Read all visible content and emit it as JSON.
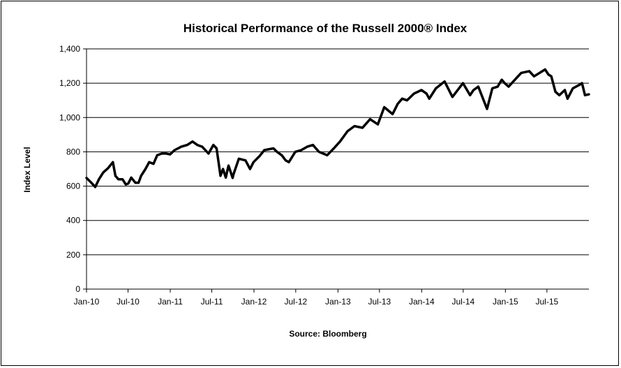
{
  "chart_data": {
    "type": "line",
    "title": "Historical Performance of the Russell 2000® Index",
    "xlabel": "",
    "ylabel": "Index Level",
    "source": "Source: Bloomberg",
    "ylim": [
      0,
      1400
    ],
    "y_ticks": [
      0,
      200,
      400,
      600,
      800,
      1000,
      1200,
      1400
    ],
    "y_tick_labels": [
      "0",
      "200",
      "400",
      "600",
      "800",
      "1,000",
      "1,200",
      "1,400"
    ],
    "xlim": [
      "2010-01-01",
      "2015-12-31"
    ],
    "x_ticks": [
      "2010-01-01",
      "2010-07-01",
      "2011-01-01",
      "2011-07-01",
      "2012-01-01",
      "2012-07-01",
      "2013-01-01",
      "2013-07-01",
      "2014-01-01",
      "2014-07-01",
      "2015-01-01",
      "2015-07-01"
    ],
    "x_tick_labels": [
      "Jan-10",
      "Jul-10",
      "Jan-11",
      "Jul-11",
      "Jan-12",
      "Jul-12",
      "Jan-13",
      "Jul-13",
      "Jan-14",
      "Jul-14",
      "Jan-15",
      "Jul-15"
    ],
    "grid": "horizontal",
    "legend": "none",
    "line_color": "#000000",
    "series": [
      {
        "x": [
          "2010-01-01",
          "2010-01-22",
          "2010-02-08",
          "2010-02-24",
          "2010-03-15",
          "2010-04-05",
          "2010-04-26",
          "2010-05-07",
          "2010-05-20",
          "2010-06-07",
          "2010-06-21",
          "2010-07-02",
          "2010-07-15",
          "2010-08-02",
          "2010-08-16",
          "2010-08-27",
          "2010-09-15",
          "2010-10-01",
          "2010-10-20",
          "2010-11-05",
          "2010-11-25",
          "2010-12-15",
          "2010-12-31",
          "2011-01-20",
          "2011-02-18",
          "2011-03-16",
          "2011-04-08",
          "2011-04-29",
          "2011-05-20",
          "2011-06-17",
          "2011-07-08",
          "2011-07-22",
          "2011-08-08",
          "2011-08-19",
          "2011-08-31",
          "2011-09-12",
          "2011-09-30",
          "2011-10-04",
          "2011-10-27",
          "2011-11-25",
          "2011-12-15",
          "2011-12-30",
          "2012-01-25",
          "2012-02-15",
          "2012-03-26",
          "2012-04-10",
          "2012-05-01",
          "2012-05-18",
          "2012-06-01",
          "2012-06-29",
          "2012-07-25",
          "2012-08-20",
          "2012-09-14",
          "2012-10-10",
          "2012-11-15",
          "2012-12-14",
          "2013-01-10",
          "2013-02-12",
          "2013-03-14",
          "2013-04-18",
          "2013-05-21",
          "2013-06-24",
          "2013-07-22",
          "2013-08-27",
          "2013-09-19",
          "2013-10-08",
          "2013-10-29",
          "2013-11-29",
          "2013-12-31",
          "2014-01-22",
          "2014-02-03",
          "2014-03-04",
          "2014-04-11",
          "2014-05-15",
          "2014-06-30",
          "2014-07-31",
          "2014-08-15",
          "2014-09-05",
          "2014-10-13",
          "2014-11-05",
          "2014-11-28",
          "2014-12-16",
          "2014-12-29",
          "2015-01-15",
          "2015-02-25",
          "2015-03-11",
          "2015-04-15",
          "2015-05-06",
          "2015-06-23",
          "2015-07-08",
          "2015-07-20",
          "2015-08-07",
          "2015-08-24",
          "2015-09-17",
          "2015-09-29",
          "2015-10-22",
          "2015-11-19",
          "2015-12-01",
          "2015-12-14",
          "2015-12-31"
        ],
        "y": [
          648,
          620,
          595,
          640,
          680,
          705,
          740,
          660,
          640,
          640,
          610,
          615,
          650,
          620,
          620,
          660,
          700,
          740,
          730,
          780,
          790,
          790,
          785,
          810,
          830,
          840,
          860,
          840,
          830,
          790,
          840,
          820,
          660,
          700,
          650,
          720,
          648,
          670,
          760,
          750,
          700,
          740,
          775,
          810,
          820,
          800,
          780,
          750,
          740,
          800,
          810,
          830,
          840,
          800,
          780,
          820,
          860,
          920,
          950,
          940,
          990,
          960,
          1060,
          1020,
          1080,
          1110,
          1100,
          1140,
          1160,
          1140,
          1110,
          1170,
          1210,
          1120,
          1200,
          1130,
          1160,
          1180,
          1050,
          1170,
          1180,
          1220,
          1200,
          1180,
          1240,
          1260,
          1270,
          1240,
          1280,
          1250,
          1240,
          1150,
          1130,
          1160,
          1110,
          1170,
          1190,
          1200,
          1130,
          1135
        ]
      }
    ]
  }
}
